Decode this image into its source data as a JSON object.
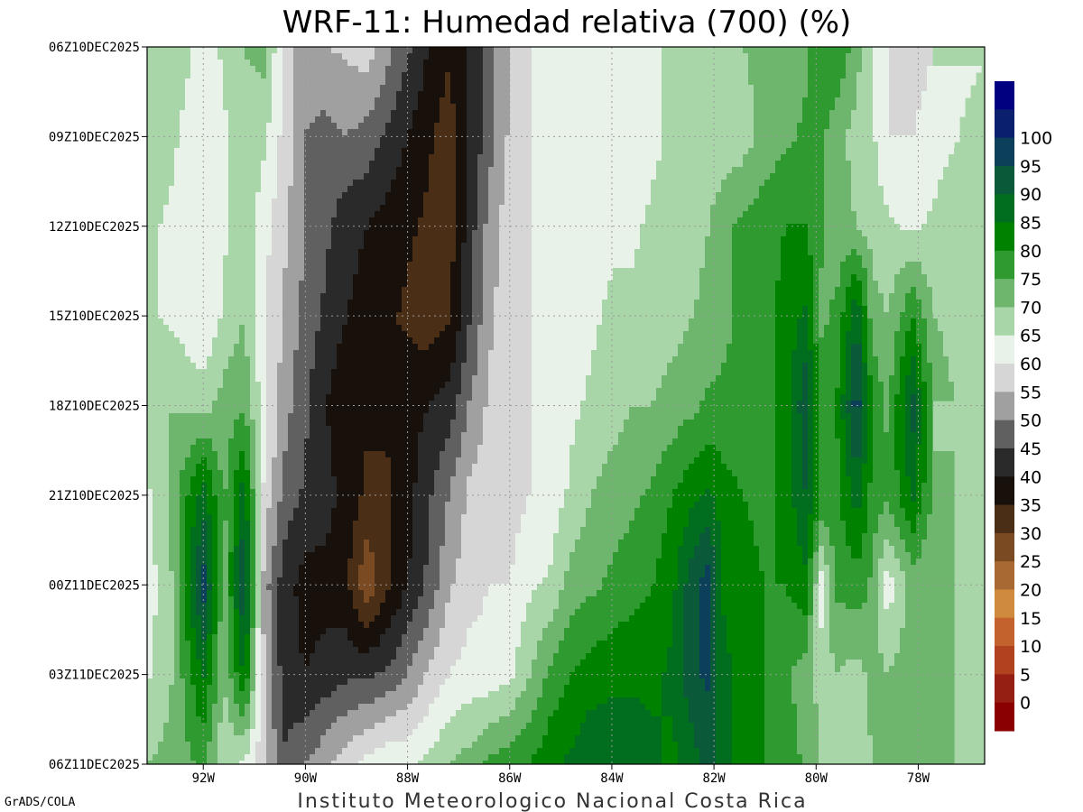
{
  "title": "WRF-11: Humedad relativa (700) (%)",
  "credit": "GrADS/COLA",
  "institution": "Instituto Meteorologico Nacional Costa Rica",
  "chart_data": {
    "type": "heatmap",
    "title": "WRF-11: Humedad relativa (700) (%)",
    "variable": "Humedad relativa (700)",
    "units": "%",
    "x_axis": {
      "quantity": "longitude",
      "range": [
        -93.1,
        -76.7
      ],
      "ticks": [
        {
          "value": -92,
          "label": "92W"
        },
        {
          "value": -90,
          "label": "90W"
        },
        {
          "value": -88,
          "label": "88W"
        },
        {
          "value": -86,
          "label": "86W"
        },
        {
          "value": -84,
          "label": "84W"
        },
        {
          "value": -82,
          "label": "82W"
        },
        {
          "value": -80,
          "label": "80W"
        },
        {
          "value": -78,
          "label": "78W"
        }
      ]
    },
    "y_axis": {
      "quantity": "time",
      "range": [
        "06Z10DEC2025",
        "06Z11DEC2025"
      ],
      "ticks": [
        {
          "value": 0,
          "label": "06Z10DEC2025"
        },
        {
          "value": 3,
          "label": "09Z10DEC2025"
        },
        {
          "value": 6,
          "label": "12Z10DEC2025"
        },
        {
          "value": 9,
          "label": "15Z10DEC2025"
        },
        {
          "value": 12,
          "label": "18Z10DEC2025"
        },
        {
          "value": 15,
          "label": "21Z10DEC2025"
        },
        {
          "value": 18,
          "label": "00Z11DEC2025"
        },
        {
          "value": 21,
          "label": "03Z11DEC2025"
        },
        {
          "value": 24,
          "label": "06Z11DEC2025"
        }
      ]
    },
    "grid": true,
    "legend_position": "right",
    "legend": [
      {
        "label": "",
        "color": "#000080"
      },
      {
        "label": "100",
        "color": "#0a1f6e"
      },
      {
        "label": "95",
        "color": "#0b3f5a"
      },
      {
        "label": "90",
        "color": "#0a5a3a"
      },
      {
        "label": "85",
        "color": "#006e1e"
      },
      {
        "label": "80",
        "color": "#008200"
      },
      {
        "label": "75",
        "color": "#2f9a2f"
      },
      {
        "label": "70",
        "color": "#6eb66e"
      },
      {
        "label": "65",
        "color": "#a8d6a8"
      },
      {
        "label": "60",
        "color": "#e8f2e8"
      },
      {
        "label": "55",
        "color": "#d6d6d6"
      },
      {
        "label": "50",
        "color": "#a0a0a0"
      },
      {
        "label": "45",
        "color": "#606060"
      },
      {
        "label": "40",
        "color": "#2a2a2a"
      },
      {
        "label": "35",
        "color": "#18110b"
      },
      {
        "label": "30",
        "color": "#4a2e16"
      },
      {
        "label": "25",
        "color": "#7a4a22"
      },
      {
        "label": "20",
        "color": "#a86a32"
      },
      {
        "label": "15",
        "color": "#cf8a3e"
      },
      {
        "label": "10",
        "color": "#c4622e"
      },
      {
        "label": "5",
        "color": "#b04220"
      },
      {
        "label": "0",
        "color": "#961f14"
      },
      {
        "label": "",
        "color": "#8a0000"
      }
    ],
    "field": {
      "lon": [
        -93.1,
        -92.6,
        -92.0,
        -91.6,
        -91.2,
        -90.8,
        -90.4,
        -90.0,
        -89.6,
        -89.2,
        -88.8,
        -88.4,
        -88.0,
        -87.6,
        -87.2,
        -86.8,
        -86.4,
        -86.0,
        -85.6,
        -85.2,
        -84.8,
        -84.4,
        -84.0,
        -83.6,
        -83.2,
        -82.8,
        -82.4,
        -82.1,
        -81.8,
        -81.4,
        -81.0,
        -80.6,
        -80.2,
        -79.9,
        -79.6,
        -79.2,
        -78.9,
        -78.6,
        -78.1,
        -77.7,
        -77.3,
        -76.7
      ],
      "time_hours": [
        0,
        3,
        6,
        9,
        12,
        15,
        18,
        21,
        24
      ],
      "rh": [
        [
          68,
          70,
          62,
          66,
          70,
          72,
          58,
          52,
          55,
          56,
          58,
          52,
          46,
          40,
          36,
          40,
          48,
          55,
          60,
          62,
          60,
          62,
          64,
          62,
          64,
          66,
          66,
          65,
          68,
          70,
          72,
          70,
          74,
          78,
          80,
          72,
          64,
          60,
          58,
          60,
          62,
          64
        ],
        [
          68,
          66,
          60,
          64,
          68,
          66,
          58,
          50,
          48,
          50,
          48,
          44,
          40,
          36,
          32,
          40,
          48,
          56,
          60,
          62,
          60,
          62,
          64,
          62,
          64,
          66,
          66,
          66,
          66,
          68,
          72,
          74,
          76,
          76,
          72,
          68,
          66,
          60,
          60,
          62,
          64,
          70
        ],
        [
          66,
          64,
          60,
          64,
          68,
          62,
          56,
          50,
          46,
          42,
          40,
          38,
          36,
          34,
          32,
          42,
          52,
          58,
          60,
          62,
          62,
          62,
          64,
          64,
          66,
          66,
          68,
          70,
          74,
          76,
          78,
          80,
          80,
          76,
          72,
          70,
          68,
          66,
          64,
          66,
          70,
          72
        ],
        [
          66,
          64,
          60,
          66,
          70,
          60,
          54,
          48,
          44,
          40,
          38,
          36,
          34,
          32,
          34,
          44,
          54,
          58,
          60,
          62,
          62,
          64,
          66,
          66,
          68,
          68,
          70,
          72,
          74,
          76,
          78,
          82,
          86,
          74,
          76,
          90,
          72,
          70,
          80,
          70,
          68,
          70
        ],
        [
          68,
          70,
          68,
          72,
          74,
          62,
          52,
          46,
          40,
          36,
          36,
          36,
          38,
          40,
          42,
          50,
          56,
          58,
          60,
          60,
          64,
          66,
          68,
          70,
          70,
          72,
          74,
          76,
          76,
          76,
          78,
          82,
          94,
          78,
          80,
          98,
          80,
          74,
          92,
          74,
          70,
          72
        ],
        [
          64,
          72,
          88,
          74,
          88,
          58,
          48,
          44,
          42,
          38,
          34,
          34,
          38,
          44,
          50,
          56,
          58,
          58,
          60,
          62,
          66,
          70,
          72,
          74,
          76,
          80,
          84,
          86,
          82,
          80,
          78,
          82,
          90,
          80,
          78,
          88,
          78,
          76,
          86,
          74,
          70,
          68
        ],
        [
          62,
          70,
          98,
          72,
          96,
          52,
          42,
          38,
          38,
          36,
          26,
          34,
          40,
          46,
          54,
          58,
          60,
          60,
          64,
          66,
          72,
          74,
          76,
          78,
          80,
          84,
          94,
          98,
          84,
          82,
          80,
          80,
          84,
          62,
          76,
          78,
          74,
          62,
          72,
          70,
          70,
          66
        ],
        [
          64,
          70,
          86,
          70,
          86,
          54,
          42,
          40,
          42,
          44,
          44,
          46,
          50,
          56,
          60,
          62,
          62,
          64,
          70,
          76,
          80,
          82,
          84,
          84,
          84,
          86,
          94,
          96,
          86,
          84,
          80,
          76,
          72,
          68,
          70,
          68,
          72,
          70,
          74,
          72,
          70,
          68
        ],
        [
          70,
          72,
          76,
          66,
          64,
          56,
          46,
          50,
          54,
          58,
          62,
          64,
          64,
          66,
          70,
          72,
          76,
          78,
          80,
          84,
          86,
          90,
          88,
          88,
          86,
          84,
          88,
          92,
          86,
          82,
          80,
          78,
          74,
          70,
          68,
          66,
          70,
          72,
          74,
          72,
          70,
          68
        ]
      ]
    }
  }
}
